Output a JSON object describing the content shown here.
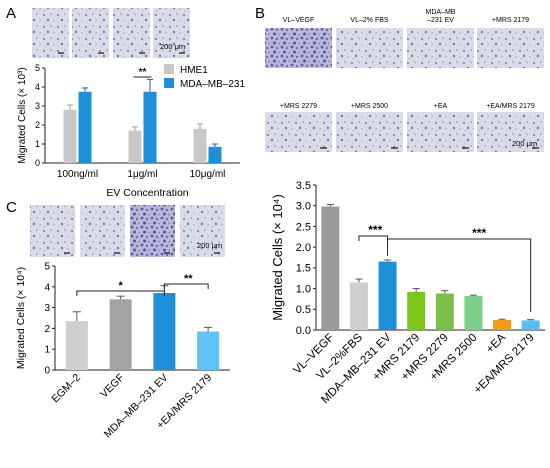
{
  "panels": {
    "A": {
      "letter": "A",
      "scale_label": "200 μm"
    },
    "B": {
      "letter": "B",
      "scale_label": "200 μm",
      "micrograph_labels_row1": [
        "VL–VEGF",
        "VL–2% FBS",
        "MDA–MB –231 EV",
        "+MRS 2179"
      ],
      "micrograph_labels_row2": [
        "+MRS 2279",
        "+MRS 2500",
        "+EA",
        "+EA/MRS 2179"
      ]
    },
    "C": {
      "letter": "C",
      "scale_label": "200 μm"
    }
  },
  "colors": {
    "gray": "#c8c8c8",
    "blue": "#1e8fd9",
    "light_blue": "#5ec4f5",
    "mid_gray": "#a3a3a3",
    "dark_gray": "#9a9a9a",
    "light_gray": "#cfcfcf",
    "lime": "#7cc61c",
    "green": "#7bbf4a",
    "light_green": "#78d08a",
    "orange": "#f39a1a",
    "sky": "#5bbcf0",
    "micrograph_bg": "#d9dbe6",
    "micrograph_stain": "#5b58a8"
  },
  "chart_data": [
    {
      "panel": "A",
      "type": "bar",
      "categories": [
        "100ng/ml",
        "1μg/ml",
        "10μg/ml"
      ],
      "series": [
        {
          "name": "HME1",
          "values": [
            2.8,
            1.7,
            1.8
          ],
          "errors": [
            0.25,
            0.2,
            0.25
          ]
        },
        {
          "name": "MDA–MB–231",
          "values": [
            3.75,
            3.75,
            0.85
          ],
          "errors": [
            0.2,
            0.65,
            0.15
          ]
        }
      ],
      "xlabel": "EV Concentration",
      "ylabel": "Migrated Cells (× 10³)",
      "ylim": [
        0,
        5
      ],
      "yticks": [
        0,
        1,
        2,
        3,
        4,
        5
      ],
      "legend_position": "top-right",
      "significance": [
        {
          "label": "**",
          "category": "1μg/ml"
        }
      ]
    },
    {
      "panel": "B",
      "type": "bar",
      "categories": [
        "VL–VEGF",
        "VL–2%FBS",
        "MDA–MB–231 EV",
        "+MRS 2179",
        "+MRS 2279",
        "+MRS 2500",
        "+EA",
        "+EA/MRS 2179"
      ],
      "values": [
        2.98,
        1.15,
        1.65,
        0.92,
        0.88,
        0.82,
        0.24,
        0.23
      ],
      "errors": [
        0.05,
        0.08,
        0.04,
        0.08,
        0.07,
        0.02,
        0.02,
        0.02
      ],
      "ylabel": "Migrated Cells (× 10⁴)",
      "ylim": [
        0,
        3.5
      ],
      "yticks": [
        0,
        0.5,
        1.0,
        1.5,
        2.0,
        2.5,
        3.0,
        3.5
      ],
      "significance": [
        {
          "label": "***",
          "from": "VL–2%FBS",
          "to": "MDA–MB–231 EV"
        },
        {
          "label": "***",
          "from": "MDA–MB–231 EV",
          "to": "+EA/MRS 2179"
        }
      ]
    },
    {
      "panel": "C",
      "type": "bar",
      "categories": [
        "EGM–2",
        "VEGF",
        "MDA–MB–231 EV",
        "+EA/MRS 2179"
      ],
      "values": [
        2.35,
        3.4,
        3.7,
        1.85
      ],
      "errors": [
        0.45,
        0.15,
        0.35,
        0.2
      ],
      "ylabel": "Migrated Cells (× 10⁴)",
      "ylim": [
        0,
        5
      ],
      "yticks": [
        0,
        1,
        2,
        3,
        4,
        5
      ],
      "significance": [
        {
          "label": "*",
          "from": "EGM–2",
          "to": "MDA–MB–231 EV"
        },
        {
          "label": "**",
          "from": "MDA–MB–231 EV",
          "to": "+EA/MRS 2179"
        }
      ]
    }
  ]
}
